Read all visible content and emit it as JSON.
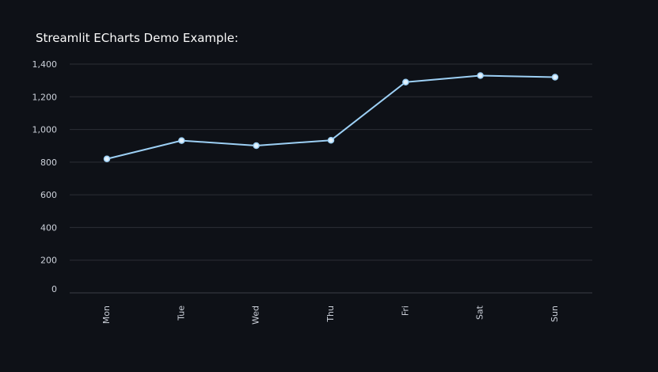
{
  "page": {
    "title": "Streamlit ECharts Demo Example:"
  },
  "colors": {
    "background": "#0e1117",
    "grid": "#2c2f36",
    "axis_line": "#3a3e47",
    "tick_text": "#ccd1da",
    "series_line": "#9dd0f5",
    "series_point_fill": "#e3f1fc"
  },
  "chart_data": {
    "type": "line",
    "title": "",
    "xlabel": "",
    "ylabel": "",
    "categories": [
      "Mon",
      "Tue",
      "Wed",
      "Thu",
      "Fri",
      "Sat",
      "Sun"
    ],
    "series": [
      {
        "values": [
          820,
          932,
          901,
          934,
          1290,
          1330,
          1320
        ]
      }
    ],
    "ylim": [
      0,
      1400
    ],
    "y_ticks": [
      0,
      200,
      400,
      600,
      800,
      1000,
      1200,
      1400
    ],
    "y_tick_labels": [
      "0",
      "200",
      "400",
      "600",
      "800",
      "1,000",
      "1,200",
      "1,400"
    ],
    "grid": true,
    "x_label_rotation": "vertical"
  }
}
